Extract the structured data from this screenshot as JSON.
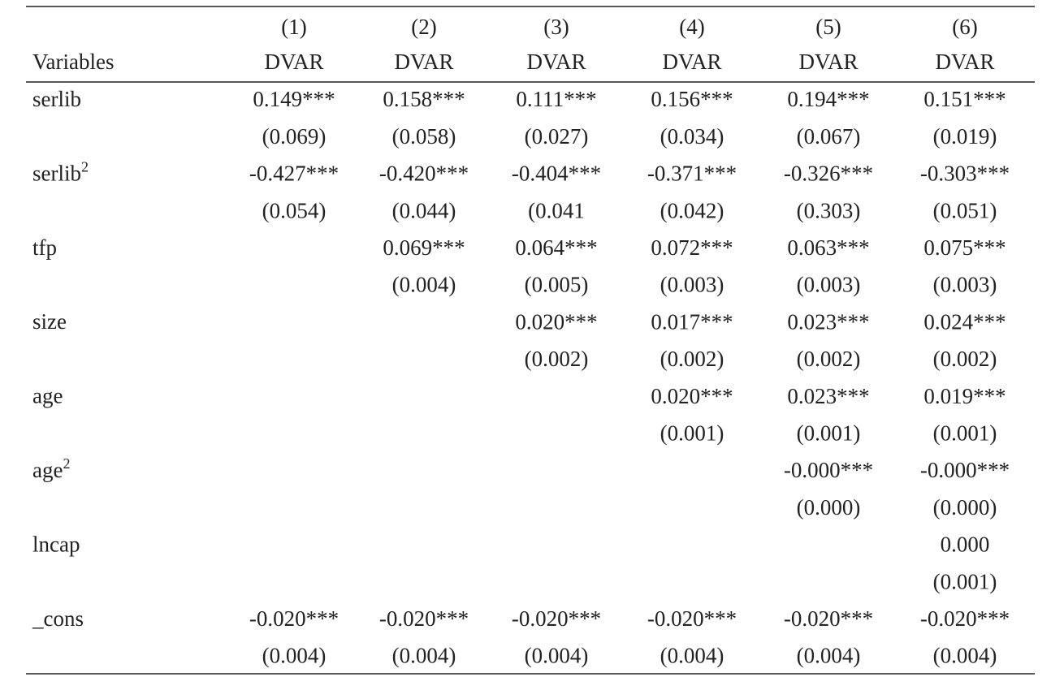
{
  "table": {
    "header": {
      "columns": [
        "(1)",
        "(2)",
        "(3)",
        "(4)",
        "(5)",
        "(6)"
      ],
      "variables_label": "Variables",
      "depvars": [
        "DVAR",
        "DVAR",
        "DVAR",
        "DVAR",
        "DVAR",
        "DVAR"
      ]
    },
    "rows": [
      {
        "variable": "serlib",
        "coef": [
          "0.149***",
          "0.158***",
          "0.111***",
          "0.156***",
          "0.194***",
          "0.151***"
        ],
        "se": [
          "(0.069)",
          "(0.058)",
          "(0.027)",
          "(0.034)",
          "(0.067)",
          "(0.019)"
        ]
      },
      {
        "variable": "serlib",
        "sup": "2",
        "coef": [
          "-0.427***",
          "-0.420***",
          "-0.404***",
          "-0.371***",
          "-0.326***",
          "-0.303***"
        ],
        "se": [
          "(0.054)",
          "(0.044)",
          "(0.041",
          "(0.042)",
          "(0.303)",
          "(0.051)"
        ]
      },
      {
        "variable": "tfp",
        "coef": [
          null,
          "0.069***",
          "0.064***",
          "0.072***",
          "0.063***",
          "0.075***"
        ],
        "se": [
          null,
          "(0.004)",
          "(0.005)",
          "(0.003)",
          "(0.003)",
          "(0.003)"
        ]
      },
      {
        "variable": "size",
        "coef": [
          null,
          null,
          "0.020***",
          "0.017***",
          "0.023***",
          "0.024***"
        ],
        "se": [
          null,
          null,
          "(0.002)",
          "(0.002)",
          "(0.002)",
          "(0.002)"
        ]
      },
      {
        "variable": "age",
        "coef": [
          null,
          null,
          null,
          "0.020***",
          "0.023***",
          "0.019***"
        ],
        "se": [
          null,
          null,
          null,
          "(0.001)",
          "(0.001)",
          "(0.001)"
        ]
      },
      {
        "variable": "age",
        "sup": "2",
        "coef": [
          null,
          null,
          null,
          null,
          "-0.000***",
          "-0.000***"
        ],
        "se": [
          null,
          null,
          null,
          null,
          "(0.000)",
          "(0.000)"
        ]
      },
      {
        "variable": "lncap",
        "coef": [
          null,
          null,
          null,
          null,
          null,
          "0.000"
        ],
        "se": [
          null,
          null,
          null,
          null,
          null,
          "(0.001)"
        ]
      },
      {
        "variable": "_cons",
        "coef": [
          "-0.020***",
          "-0.020***",
          "-0.020***",
          "-0.020***",
          "-0.020***",
          "-0.020***"
        ],
        "se": [
          "(0.004)",
          "(0.004)",
          "(0.004)",
          "(0.004)",
          "(0.004)",
          "(0.004)"
        ]
      }
    ]
  }
}
